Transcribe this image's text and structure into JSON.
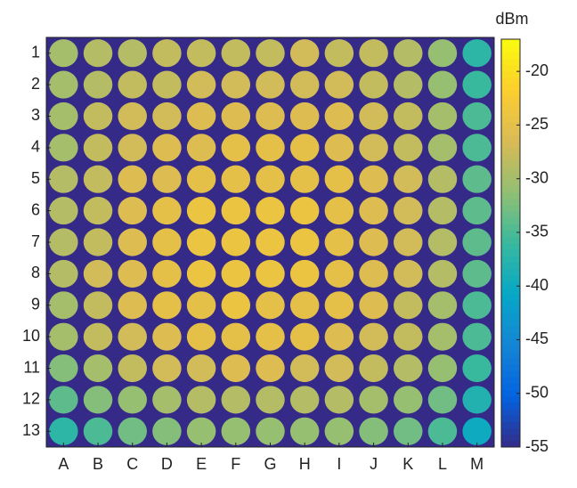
{
  "chart_data": {
    "type": "heatmap",
    "x_categories": [
      "A",
      "B",
      "C",
      "D",
      "E",
      "F",
      "G",
      "H",
      "I",
      "J",
      "K",
      "L",
      "M"
    ],
    "y_categories": [
      "1",
      "2",
      "3",
      "4",
      "5",
      "6",
      "7",
      "8",
      "9",
      "10",
      "11",
      "12",
      "13"
    ],
    "values": [
      [
        -30,
        -29,
        -29,
        -28,
        -28,
        -28,
        -28,
        -27,
        -28,
        -28,
        -29,
        -31,
        -37
      ],
      [
        -30,
        -29,
        -28,
        -28,
        -27,
        -27,
        -27,
        -27,
        -27,
        -28,
        -29,
        -31,
        -36
      ],
      [
        -30,
        -28,
        -27,
        -27,
        -26,
        -26,
        -26,
        -26,
        -26,
        -27,
        -28,
        -30,
        -35
      ],
      [
        -30,
        -28,
        -27,
        -26,
        -26,
        -25,
        -25,
        -25,
        -26,
        -27,
        -28,
        -30,
        -35
      ],
      [
        -29,
        -28,
        -26,
        -26,
        -25,
        -25,
        -25,
        -25,
        -25,
        -26,
        -27,
        -29,
        -34
      ],
      [
        -29,
        -28,
        -26,
        -25,
        -24,
        -24,
        -24,
        -24,
        -25,
        -26,
        -27,
        -29,
        -34
      ],
      [
        -29,
        -28,
        -26,
        -25,
        -24,
        -24,
        -24,
        -24,
        -25,
        -26,
        -27,
        -29,
        -34
      ],
      [
        -29,
        -27,
        -26,
        -25,
        -24,
        -24,
        -24,
        -24,
        -25,
        -26,
        -27,
        -29,
        -34
      ],
      [
        -30,
        -28,
        -26,
        -25,
        -25,
        -24,
        -25,
        -25,
        -25,
        -26,
        -28,
        -30,
        -35
      ],
      [
        -30,
        -28,
        -27,
        -26,
        -25,
        -25,
        -25,
        -25,
        -26,
        -27,
        -28,
        -30,
        -35
      ],
      [
        -32,
        -30,
        -28,
        -27,
        -27,
        -26,
        -26,
        -27,
        -27,
        -28,
        -29,
        -31,
        -36
      ],
      [
        -34,
        -32,
        -31,
        -30,
        -29,
        -29,
        -29,
        -29,
        -29,
        -30,
        -31,
        -33,
        -38
      ],
      [
        -37,
        -35,
        -33,
        -32,
        -31,
        -31,
        -31,
        -31,
        -31,
        -32,
        -33,
        -35,
        -40
      ]
    ],
    "zlim": [
      -55,
      -17
    ],
    "zticks": [
      -20,
      -25,
      -30,
      -35,
      -40,
      -45,
      -50,
      -55
    ],
    "colorbar_label": "dBm"
  }
}
